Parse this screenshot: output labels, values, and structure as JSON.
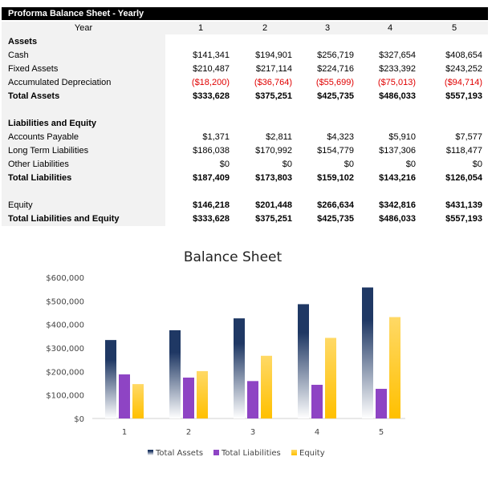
{
  "sheet": {
    "title": "Proforma Balance Sheet - Yearly",
    "year_label": "Year",
    "years": [
      "1",
      "2",
      "3",
      "4",
      "5"
    ],
    "rows": [
      {
        "label": "Assets",
        "bold": true,
        "values": []
      },
      {
        "label": "Cash",
        "values": [
          "$141,341",
          "$194,901",
          "$256,719",
          "$327,654",
          "$408,654"
        ]
      },
      {
        "label": "Fixed Assets",
        "values": [
          "$210,487",
          "$217,114",
          "$224,716",
          "$233,392",
          "$243,252"
        ]
      },
      {
        "label": "Accumulated Depreciation",
        "negative": true,
        "values": [
          "($18,200)",
          "($36,764)",
          "($55,699)",
          "($75,013)",
          "($94,714)"
        ]
      },
      {
        "label": "Total Assets",
        "bold": true,
        "values": [
          "$333,628",
          "$375,251",
          "$425,735",
          "$486,033",
          "$557,193"
        ]
      },
      {
        "label": "",
        "values": []
      },
      {
        "label": "Liabilities and Equity",
        "bold": true,
        "values": []
      },
      {
        "label": "Accounts Payable",
        "values": [
          "$1,371",
          "$2,811",
          "$4,323",
          "$5,910",
          "$7,577"
        ]
      },
      {
        "label": "Long Term Liabilities",
        "values": [
          "$186,038",
          "$170,992",
          "$154,779",
          "$137,306",
          "$118,477"
        ]
      },
      {
        "label": "Other Liabilities",
        "values": [
          "$0",
          "$0",
          "$0",
          "$0",
          "$0"
        ]
      },
      {
        "label": "Total Liabilities",
        "bold": true,
        "values": [
          "$187,409",
          "$173,803",
          "$159,102",
          "$143,216",
          "$126,054"
        ]
      },
      {
        "label": "",
        "values": []
      },
      {
        "label": "Equity",
        "boldvals": true,
        "values": [
          "$146,218",
          "$201,448",
          "$266,634",
          "$342,816",
          "$431,139"
        ]
      },
      {
        "label": "Total Liabilities and Equity",
        "bold": true,
        "values": [
          "$333,628",
          "$375,251",
          "$425,735",
          "$486,033",
          "$557,193"
        ]
      }
    ],
    "negative_color": "#e00000"
  },
  "chart_data": {
    "type": "bar",
    "title": "Balance Sheet",
    "categories": [
      "1",
      "2",
      "3",
      "4",
      "5"
    ],
    "ylim": [
      0,
      600000
    ],
    "yticks": [
      "$0",
      "$100,000",
      "$200,000",
      "$300,000",
      "$400,000",
      "$500,000",
      "$600,000"
    ],
    "grid": false,
    "legend": "bottom",
    "series": [
      {
        "name": "Total Assets",
        "values": [
          333628,
          375251,
          425735,
          486033,
          557193
        ],
        "color": "#1f3864",
        "gradient": true
      },
      {
        "name": "Total Liabilities",
        "values": [
          187409,
          173803,
          159102,
          143216,
          126054
        ],
        "color": "#8e44c4"
      },
      {
        "name": "Equity",
        "values": [
          146218,
          201448,
          266634,
          342816,
          431139
        ],
        "color": "#ffc000",
        "gradient": true
      }
    ]
  }
}
